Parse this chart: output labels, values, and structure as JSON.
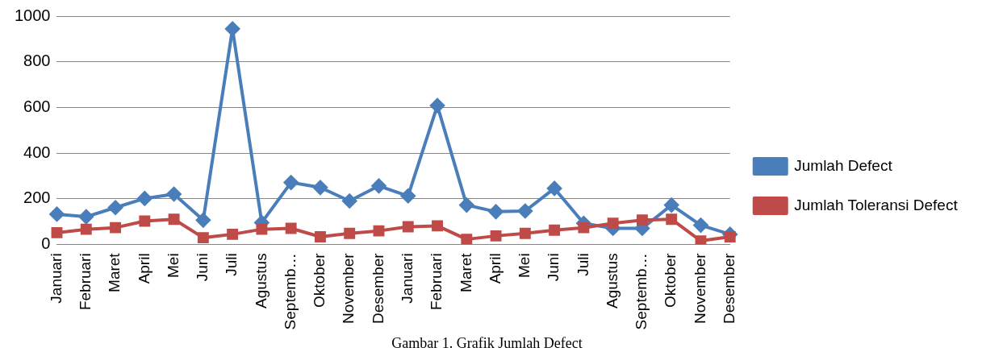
{
  "chart_data": {
    "type": "line",
    "title": "Gambar 1. Grafik Jumlah Defect",
    "categories": [
      "Januari",
      "Februari",
      "Maret",
      "April",
      "Mei",
      "Juni",
      "Juli",
      "Agustus",
      "Septemb…",
      "Oktober",
      "November",
      "Desember",
      "Januari",
      "Februari",
      "Maret",
      "April",
      "Mei",
      "Juni",
      "Juli",
      "Agustus",
      "Septemb…",
      "Oktober",
      "November",
      "Desember"
    ],
    "series": [
      {
        "name": "Jumlah Defect",
        "color": "#4a7ebb",
        "marker": "diamond",
        "values": [
          132,
          121,
          161,
          201,
          220,
          106,
          944,
          95,
          271,
          249,
          190,
          256,
          212,
          608,
          172,
          143,
          146,
          245,
          92,
          70,
          70,
          172,
          84,
          44
        ]
      },
      {
        "name": "Jumlah Toleransi Defect",
        "color": "#be4b48",
        "marker": "square",
        "values": [
          51,
          66,
          73,
          102,
          110,
          29,
          44,
          66,
          70,
          33,
          48,
          59,
          77,
          81,
          22,
          37,
          48,
          62,
          73,
          92,
          106,
          110,
          15,
          33
        ]
      }
    ],
    "ylim": [
      0,
      1000
    ],
    "yticks": [
      0,
      200,
      400,
      600,
      800,
      1000
    ],
    "grid": "y",
    "legend": "right",
    "line_style": "solid"
  }
}
